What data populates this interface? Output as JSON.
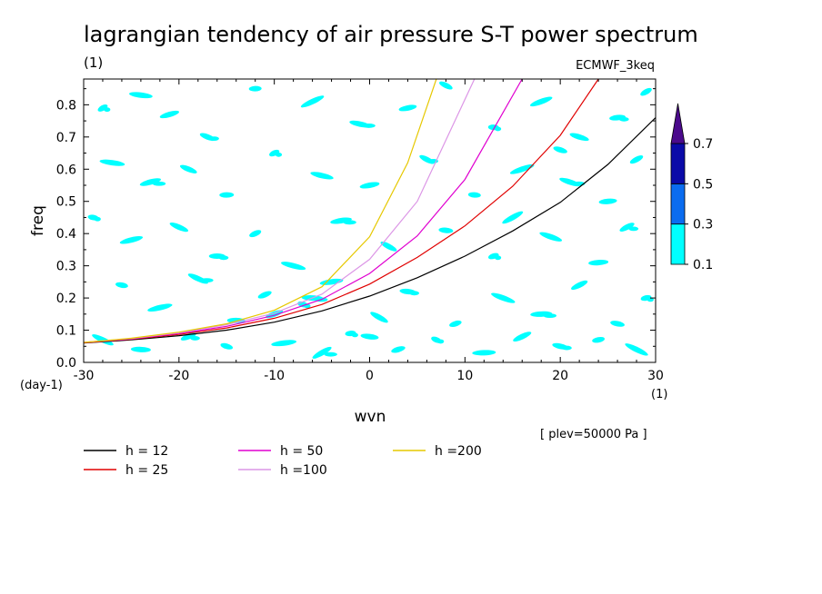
{
  "chart_data": {
    "type": "heatmap",
    "title": "lagrangian tendency of air pressure S-T power spectrum",
    "subtitle": "(1)",
    "source_label": "ECMWF_3keq",
    "xlabel": "wvn",
    "ylabel": "freq",
    "x_unit": "(1)",
    "y_unit": "(day-1)",
    "xlim": [
      -30,
      30
    ],
    "ylim": [
      0,
      0.88
    ],
    "x_ticks": [
      "-30",
      "-20",
      "-10",
      "0",
      "10",
      "20",
      "30"
    ],
    "y_ticks": [
      "0.0",
      "0.1",
      "0.2",
      "0.3",
      "0.4",
      "0.5",
      "0.6",
      "0.7",
      "0.8"
    ],
    "plev_note": "[ plev=50000 Pa ]",
    "colorbar": {
      "levels": [
        "0.1",
        "0.3",
        "0.5",
        "0.7"
      ],
      "colors": [
        "#00ffff",
        "#0a6cf0",
        "#0a0aa8",
        "#4b0a8c"
      ]
    },
    "contour_patches_cyan": [
      [
        -28,
        0.79
      ],
      [
        -24,
        0.83
      ],
      [
        -21,
        0.77
      ],
      [
        -17,
        0.7
      ],
      [
        -12,
        0.85
      ],
      [
        -6,
        0.81
      ],
      [
        -1,
        0.74
      ],
      [
        4,
        0.79
      ],
      [
        8,
        0.86
      ],
      [
        13,
        0.73
      ],
      [
        18,
        0.81
      ],
      [
        22,
        0.7
      ],
      [
        26,
        0.76
      ],
      [
        29,
        0.84
      ],
      [
        -27,
        0.62
      ],
      [
        -23,
        0.56
      ],
      [
        -19,
        0.6
      ],
      [
        -15,
        0.52
      ],
      [
        -10,
        0.65
      ],
      [
        -5,
        0.58
      ],
      [
        0,
        0.55
      ],
      [
        6,
        0.63
      ],
      [
        11,
        0.52
      ],
      [
        16,
        0.6
      ],
      [
        21,
        0.56
      ],
      [
        25,
        0.5
      ],
      [
        28,
        0.63
      ],
      [
        -29,
        0.45
      ],
      [
        -25,
        0.38
      ],
      [
        -20,
        0.42
      ],
      [
        -16,
        0.33
      ],
      [
        -12,
        0.4
      ],
      [
        -8,
        0.3
      ],
      [
        -3,
        0.44
      ],
      [
        2,
        0.36
      ],
      [
        8,
        0.41
      ],
      [
        13,
        0.33
      ],
      [
        19,
        0.39
      ],
      [
        24,
        0.31
      ],
      [
        27,
        0.42
      ],
      [
        -26,
        0.24
      ],
      [
        -22,
        0.17
      ],
      [
        -18,
        0.26
      ],
      [
        -14,
        0.13
      ],
      [
        -11,
        0.21
      ],
      [
        -7,
        0.18
      ],
      [
        -4,
        0.25
      ],
      [
        1,
        0.14
      ],
      [
        4,
        0.22
      ],
      [
        9,
        0.12
      ],
      [
        14,
        0.2
      ],
      [
        18,
        0.15
      ],
      [
        22,
        0.24
      ],
      [
        26,
        0.12
      ],
      [
        29,
        0.2
      ],
      [
        -28,
        0.07
      ],
      [
        -24,
        0.04
      ],
      [
        -19,
        0.08
      ],
      [
        -15,
        0.05
      ],
      [
        -9,
        0.06
      ],
      [
        -5,
        0.03
      ],
      [
        0,
        0.08
      ],
      [
        3,
        0.04
      ],
      [
        7,
        0.07
      ],
      [
        12,
        0.03
      ],
      [
        16,
        0.08
      ],
      [
        20,
        0.05
      ],
      [
        24,
        0.07
      ],
      [
        28,
        0.04
      ],
      [
        -6,
        0.2
      ],
      [
        -10,
        0.15
      ],
      [
        20,
        0.66
      ],
      [
        -2,
        0.09
      ],
      [
        15,
        0.45
      ]
    ],
    "series": [
      {
        "name": "h = 12",
        "color": "#000000",
        "x": [
          -30,
          -25,
          -20,
          -15,
          -10,
          -5,
          0,
          5,
          10,
          15,
          20,
          25,
          30
        ],
        "y": [
          0.06,
          0.07,
          0.083,
          0.1,
          0.125,
          0.16,
          0.206,
          0.263,
          0.33,
          0.408,
          0.497,
          0.615,
          0.76
        ]
      },
      {
        "name": "h = 25",
        "color": "#e00000",
        "x": [
          -30,
          -25,
          -20,
          -15,
          -10,
          -5,
          0,
          5,
          10,
          15,
          20,
          24
        ],
        "y": [
          0.061,
          0.072,
          0.087,
          0.107,
          0.137,
          0.18,
          0.243,
          0.326,
          0.424,
          0.547,
          0.705,
          0.88
        ]
      },
      {
        "name": "h = 50",
        "color": "#e000d0",
        "x": [
          -30,
          -25,
          -20,
          -15,
          -10,
          -5,
          0,
          5,
          10,
          16
        ],
        "y": [
          0.062,
          0.073,
          0.09,
          0.112,
          0.146,
          0.196,
          0.276,
          0.393,
          0.568,
          0.88
        ]
      },
      {
        "name": "h =100",
        "color": "#dc96e6",
        "x": [
          -30,
          -25,
          -20,
          -15,
          -10,
          -5,
          0,
          5,
          11
        ],
        "y": [
          0.062,
          0.074,
          0.092,
          0.117,
          0.153,
          0.212,
          0.32,
          0.5,
          0.88
        ]
      },
      {
        "name": "h =200",
        "color": "#e6c800",
        "x": [
          -30,
          -25,
          -20,
          -15,
          -10,
          -5,
          0,
          4,
          7
        ],
        "y": [
          0.062,
          0.075,
          0.094,
          0.12,
          0.162,
          0.235,
          0.39,
          0.62,
          0.88
        ]
      }
    ]
  }
}
